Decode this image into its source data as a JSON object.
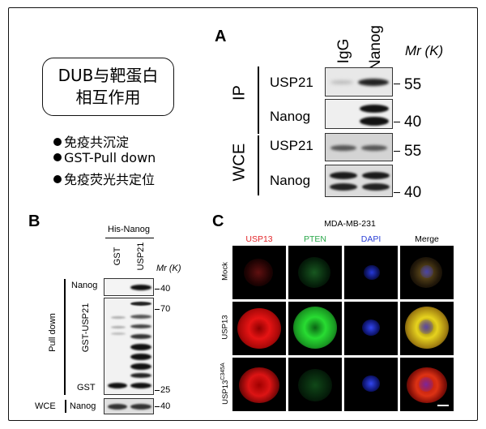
{
  "dub_box": {
    "line1": "DUB与靶蛋白",
    "line2": "相互作用"
  },
  "methods": [
    "免疫共沉淀",
    "GST-Pull down",
    "免疫荧光共定位"
  ],
  "panel_a": {
    "letter": "A",
    "lanes": [
      "IgG",
      "Nanog"
    ],
    "mr_label": "Mr (K)",
    "sections": [
      {
        "name": "IP",
        "rows": [
          "USP21",
          "Nanog"
        ]
      },
      {
        "name": "WCE",
        "rows": [
          "USP21",
          "Nanog"
        ]
      }
    ],
    "markers": [
      "55",
      "40",
      "55",
      "40"
    ]
  },
  "panel_b": {
    "letter": "B",
    "header": "His-Nanog",
    "lanes": [
      "GST",
      "USP21"
    ],
    "mr_label": "Mr (K)",
    "pull_down_label": "Pull down",
    "row_nanog": "Nanog",
    "row_gst_usp21": "GST-USP21",
    "row_gst": "GST",
    "wce_label": "WCE",
    "wce_row": "Nanog",
    "markers": [
      "40",
      "70",
      "25",
      "40"
    ]
  },
  "panel_c": {
    "letter": "C",
    "cell_line": "MDA-MB-231",
    "columns": [
      {
        "label": "USP13",
        "color": "#e3262a"
      },
      {
        "label": "PTEN",
        "color": "#2aa84a"
      },
      {
        "label": "DAPI",
        "color": "#2a3fd6"
      },
      {
        "label": "Merge",
        "color": "#000000"
      }
    ],
    "rows": [
      "Mock",
      "USP13",
      "USP13",
      "C345A"
    ]
  }
}
